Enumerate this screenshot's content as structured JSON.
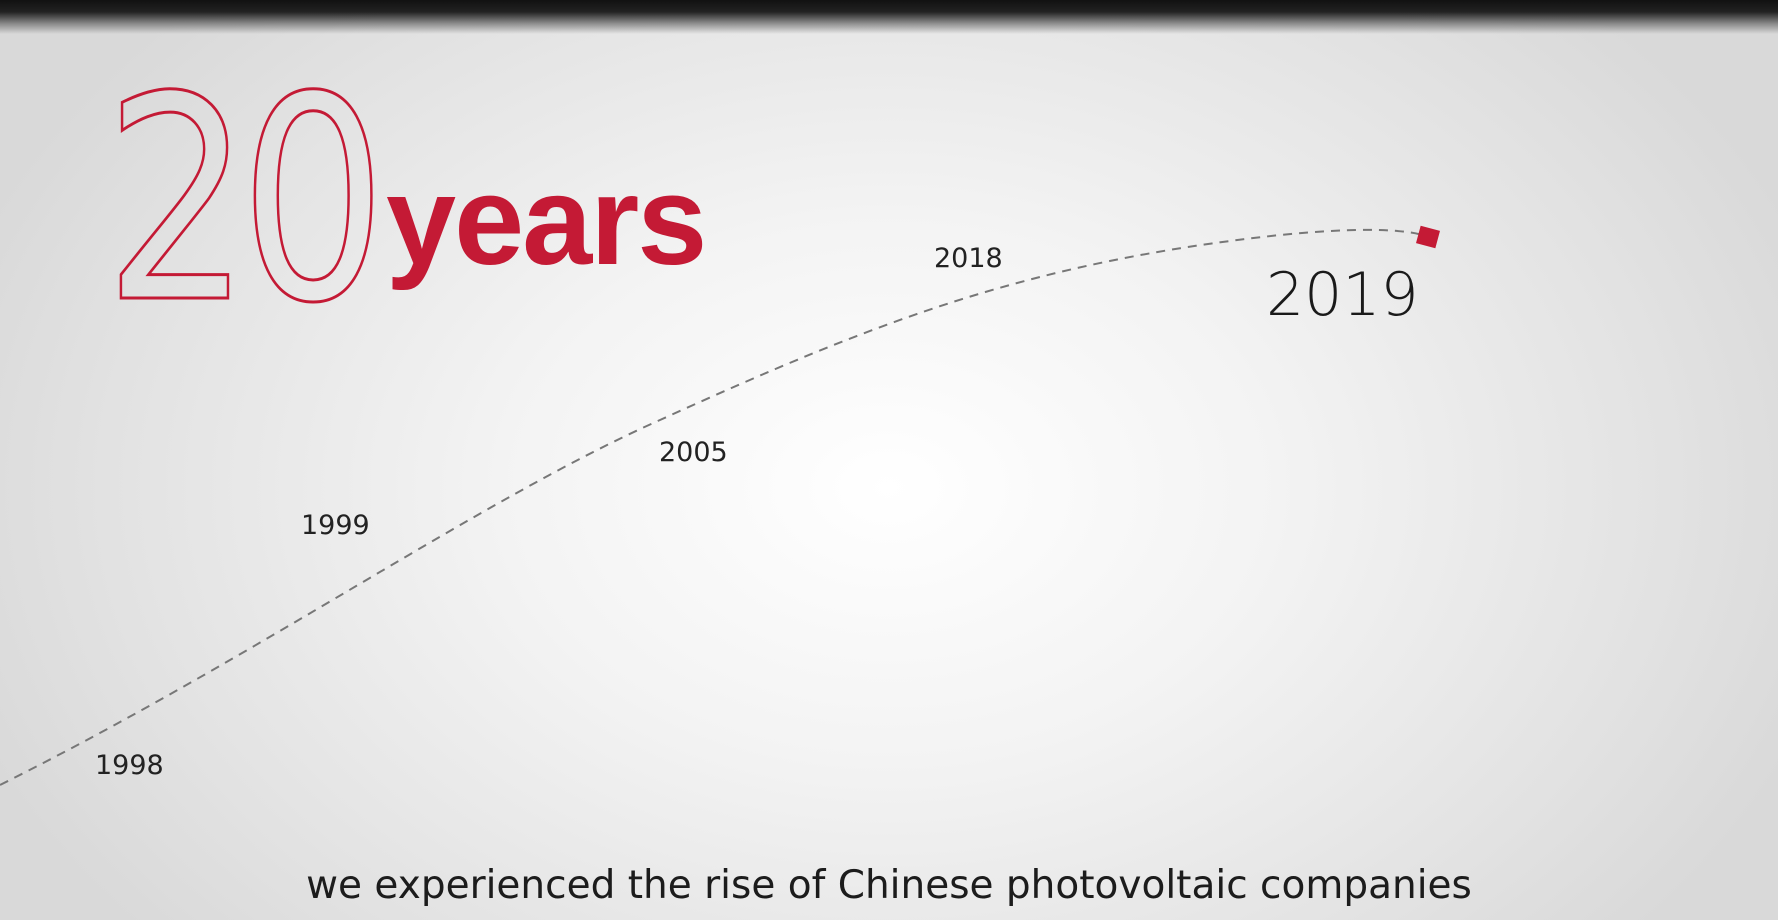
{
  "headline": {
    "number": "20",
    "word": "years"
  },
  "timeline": {
    "years": [
      "1998",
      "1999",
      "2005",
      "2018",
      "2019"
    ],
    "highlight_year": "2019"
  },
  "caption": "we experienced the rise of Chinese photovoltaic companies",
  "colors": {
    "accent": "#c41a35",
    "text": "#1c1c1c",
    "dash": "#777777"
  }
}
